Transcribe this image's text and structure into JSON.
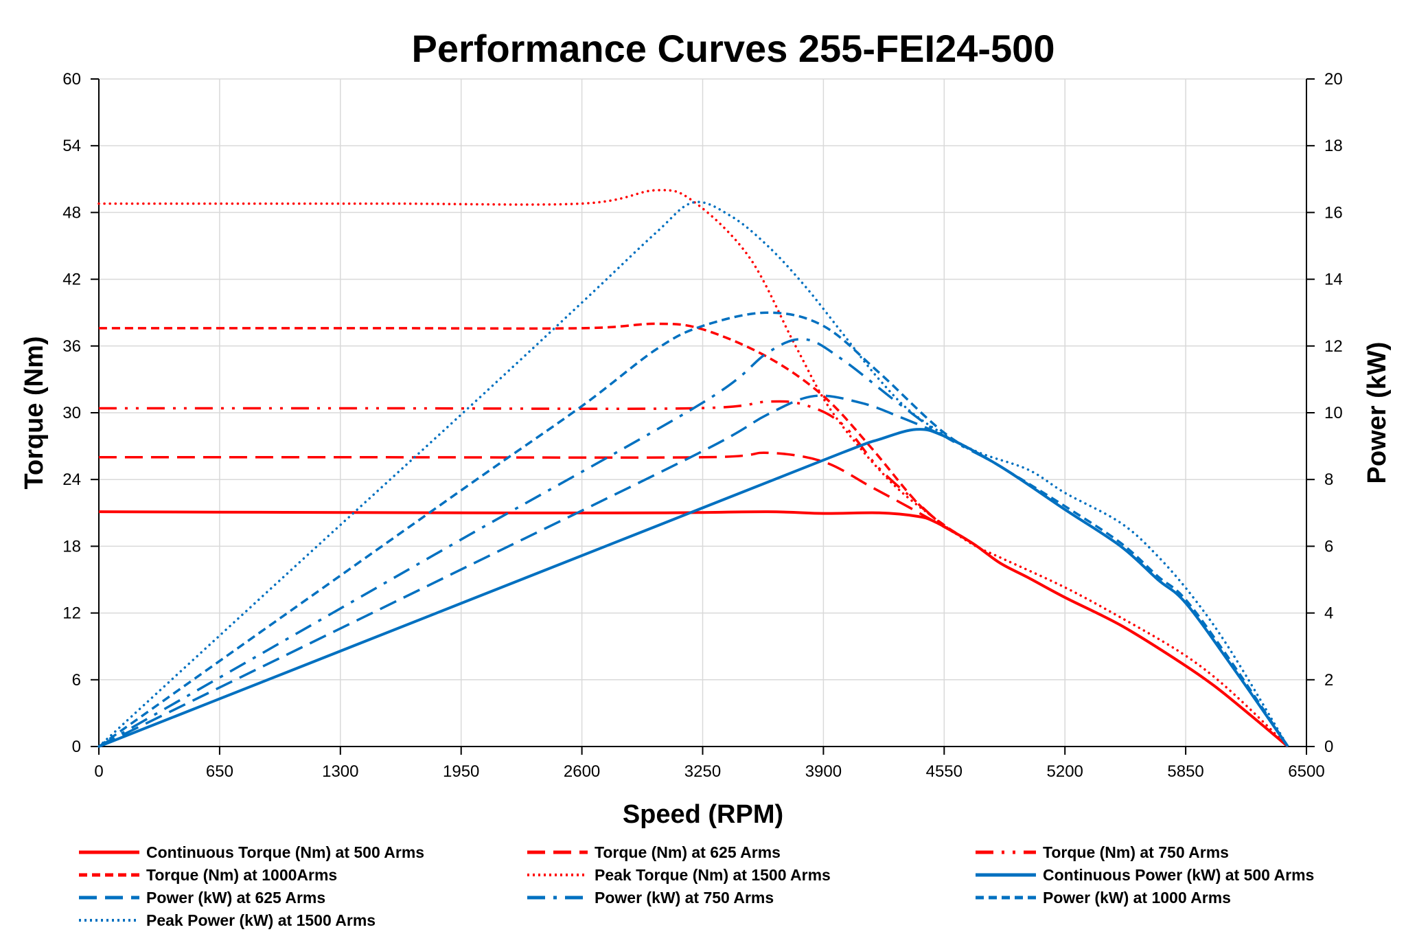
{
  "chart_data": {
    "type": "line",
    "title": "Performance Curves 255-FEI24-500",
    "xlabel": "Speed (RPM)",
    "ylabel": "Torque (Nm)",
    "y2label": "Power (kW)",
    "xlim": [
      0,
      6500
    ],
    "ylim": [
      0,
      60
    ],
    "y2lim": [
      0,
      20
    ],
    "xticks": [
      0,
      650,
      1300,
      1950,
      2600,
      3250,
      3900,
      4550,
      5200,
      5850,
      6500
    ],
    "yticks": [
      0,
      6,
      12,
      18,
      24,
      30,
      36,
      42,
      48,
      54,
      60
    ],
    "y2ticks": [
      0,
      2,
      4,
      6,
      8,
      10,
      12,
      14,
      16,
      18,
      20
    ],
    "grid": true,
    "legend_position": "bottom",
    "colors": {
      "torque": "#ff0000",
      "power": "#0070c0"
    },
    "series": [
      {
        "name": "Continuous Torque (Nm) at 500 Arms",
        "axis": "left",
        "color": "#ff0000",
        "style": "solid",
        "points": [
          [
            0,
            21.1
          ],
          [
            1000,
            21.05
          ],
          [
            2000,
            21.0
          ],
          [
            3000,
            21.0
          ],
          [
            3600,
            21.1
          ],
          [
            3900,
            20.95
          ],
          [
            4200,
            21.0
          ],
          [
            4400,
            20.7
          ],
          [
            4500,
            20.2
          ],
          [
            4700,
            18.3
          ],
          [
            4850,
            16.5
          ],
          [
            5000,
            15.2
          ],
          [
            5200,
            13.4
          ],
          [
            5500,
            10.9
          ],
          [
            5800,
            7.8
          ],
          [
            6000,
            5.5
          ],
          [
            6200,
            2.8
          ],
          [
            6400,
            0
          ]
        ]
      },
      {
        "name": "Torque (Nm) at 625 Arms",
        "axis": "left",
        "color": "#ff0000",
        "style": "dash",
        "points": [
          [
            0,
            26.0
          ],
          [
            1500,
            26.0
          ],
          [
            3250,
            26.0
          ],
          [
            3600,
            26.4
          ],
          [
            3900,
            25.6
          ],
          [
            4150,
            23.4
          ],
          [
            4350,
            21.6
          ],
          [
            4500,
            20.2
          ],
          [
            4700,
            18.3
          ],
          [
            4850,
            16.5
          ],
          [
            5000,
            15.2
          ],
          [
            5200,
            13.4
          ],
          [
            5500,
            10.9
          ],
          [
            5800,
            7.8
          ],
          [
            6000,
            5.5
          ],
          [
            6200,
            2.8
          ],
          [
            6400,
            0
          ]
        ]
      },
      {
        "name": "Torque (Nm) at 750 Arms",
        "axis": "left",
        "color": "#ff0000",
        "style": "dashdotdot",
        "points": [
          [
            0,
            30.4
          ],
          [
            1500,
            30.4
          ],
          [
            3200,
            30.4
          ],
          [
            3600,
            31.0
          ],
          [
            3800,
            30.7
          ],
          [
            4000,
            29.0
          ],
          [
            4200,
            25.0
          ],
          [
            4400,
            22.0
          ],
          [
            4550,
            19.8
          ],
          [
            4700,
            18.3
          ],
          [
            4850,
            16.5
          ],
          [
            5000,
            15.2
          ],
          [
            5200,
            13.4
          ],
          [
            5500,
            10.9
          ],
          [
            5800,
            7.8
          ],
          [
            6000,
            5.5
          ],
          [
            6200,
            2.8
          ],
          [
            6400,
            0
          ]
        ]
      },
      {
        "name": "Torque (Nm) at 1000Arms",
        "axis": "left",
        "color": "#ff0000",
        "style": "shortdash",
        "points": [
          [
            0,
            37.6
          ],
          [
            1500,
            37.6
          ],
          [
            2600,
            37.6
          ],
          [
            3000,
            38.0
          ],
          [
            3250,
            37.5
          ],
          [
            3600,
            35.0
          ],
          [
            3900,
            31.5
          ],
          [
            4150,
            27.0
          ],
          [
            4400,
            22.0
          ],
          [
            4550,
            19.9
          ],
          [
            4700,
            18.3
          ],
          [
            4850,
            16.5
          ],
          [
            5000,
            15.2
          ],
          [
            5200,
            13.4
          ],
          [
            5500,
            10.9
          ],
          [
            5800,
            7.8
          ],
          [
            6000,
            5.5
          ],
          [
            6200,
            2.8
          ],
          [
            6400,
            0
          ]
        ]
      },
      {
        "name": "Peak Torque (Nm) at 1500  Arms",
        "axis": "left",
        "color": "#ff0000",
        "style": "dot",
        "points": [
          [
            0,
            48.8
          ],
          [
            1500,
            48.8
          ],
          [
            2600,
            48.8
          ],
          [
            3000,
            50.0
          ],
          [
            3200,
            49.0
          ],
          [
            3500,
            44.0
          ],
          [
            3750,
            36.0
          ],
          [
            3950,
            30.0
          ],
          [
            4250,
            24.0
          ],
          [
            4500,
            20.5
          ],
          [
            4700,
            18.2
          ],
          [
            4850,
            17.0
          ],
          [
            5200,
            14.3
          ],
          [
            5500,
            11.6
          ],
          [
            5800,
            8.7
          ],
          [
            6000,
            6.3
          ],
          [
            6200,
            3.3
          ],
          [
            6400,
            0
          ]
        ]
      },
      {
        "name": "Continuous Power (kW) at 500 Arms",
        "axis": "right",
        "color": "#0070c0",
        "style": "solid",
        "points": [
          [
            0,
            0
          ],
          [
            1000,
            2.2
          ],
          [
            2000,
            4.4
          ],
          [
            3000,
            6.6
          ],
          [
            4000,
            8.8
          ],
          [
            4200,
            9.2
          ],
          [
            4400,
            9.5
          ],
          [
            4550,
            9.3
          ],
          [
            4850,
            8.4
          ],
          [
            5200,
            7.1
          ],
          [
            5500,
            6.0
          ],
          [
            5700,
            5.0
          ],
          [
            5850,
            4.3
          ],
          [
            6100,
            2.4
          ],
          [
            6400,
            0
          ]
        ]
      },
      {
        "name": "Power (kW) at 625 Arms",
        "axis": "right",
        "color": "#0070c0",
        "style": "dash",
        "points": [
          [
            0,
            0
          ],
          [
            1000,
            2.72
          ],
          [
            2000,
            5.44
          ],
          [
            3250,
            8.85
          ],
          [
            3600,
            9.95
          ],
          [
            3850,
            10.5
          ],
          [
            4100,
            10.3
          ],
          [
            4300,
            9.9
          ],
          [
            4550,
            9.3
          ],
          [
            4850,
            8.4
          ],
          [
            5200,
            7.1
          ],
          [
            5500,
            6.0
          ],
          [
            5700,
            5.0
          ],
          [
            5850,
            4.3
          ],
          [
            6100,
            2.4
          ],
          [
            6400,
            0
          ]
        ]
      },
      {
        "name": "Power (kW) at 750 Arms",
        "axis": "right",
        "color": "#0070c0",
        "style": "dashdot",
        "points": [
          [
            0,
            0
          ],
          [
            1000,
            3.18
          ],
          [
            2000,
            6.36
          ],
          [
            3250,
            10.3
          ],
          [
            3600,
            11.8
          ],
          [
            3800,
            12.2
          ],
          [
            4000,
            11.6
          ],
          [
            4300,
            10.3
          ],
          [
            4550,
            9.3
          ],
          [
            4850,
            8.4
          ],
          [
            5200,
            7.1
          ],
          [
            5500,
            6.0
          ],
          [
            5700,
            5.0
          ],
          [
            5850,
            4.3
          ],
          [
            6100,
            2.4
          ],
          [
            6400,
            0
          ]
        ]
      },
      {
        "name": "Power (kW) at 1000 Arms",
        "axis": "right",
        "color": "#0070c0",
        "style": "shortdash",
        "points": [
          [
            0,
            0
          ],
          [
            1000,
            3.94
          ],
          [
            2000,
            7.87
          ],
          [
            2600,
            10.2
          ],
          [
            3000,
            11.9
          ],
          [
            3250,
            12.6
          ],
          [
            3600,
            13.0
          ],
          [
            3900,
            12.6
          ],
          [
            4200,
            11.2
          ],
          [
            4550,
            9.4
          ],
          [
            4850,
            8.4
          ],
          [
            5200,
            7.2
          ],
          [
            5500,
            6.1
          ],
          [
            5700,
            5.1
          ],
          [
            5850,
            4.4
          ],
          [
            6100,
            2.5
          ],
          [
            6400,
            0
          ]
        ]
      },
      {
        "name": "Peak Power (kW) at 1500 Arms",
        "axis": "right",
        "color": "#0070c0",
        "style": "dot",
        "points": [
          [
            0,
            0
          ],
          [
            1000,
            5.11
          ],
          [
            2000,
            10.2
          ],
          [
            2600,
            13.3
          ],
          [
            3000,
            15.4
          ],
          [
            3200,
            16.3
          ],
          [
            3400,
            15.9
          ],
          [
            3600,
            15.0
          ],
          [
            3800,
            13.8
          ],
          [
            4000,
            12.4
          ],
          [
            4200,
            11.0
          ],
          [
            4400,
            9.9
          ],
          [
            4700,
            8.9
          ],
          [
            5000,
            8.3
          ],
          [
            5200,
            7.6
          ],
          [
            5500,
            6.7
          ],
          [
            5700,
            5.7
          ],
          [
            5900,
            4.4
          ],
          [
            6100,
            2.8
          ],
          [
            6400,
            0
          ]
        ]
      }
    ]
  }
}
